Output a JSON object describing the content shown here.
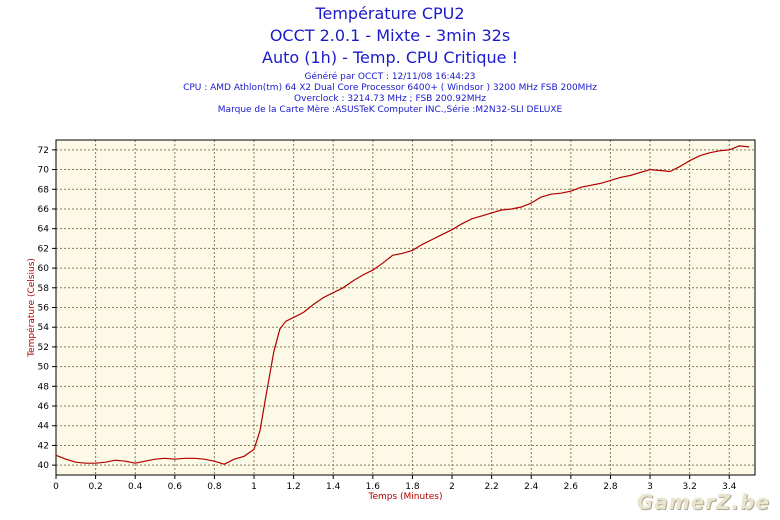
{
  "header": {
    "title_lines": [
      "Température CPU2",
      "OCCT 2.0.1 - Mixte - 3min 32s",
      "Auto (1h) - Temp. CPU Critique !"
    ],
    "info_lines": [
      "Généré par OCCT : 12/11/08 16:44:23",
      "CPU : AMD Athlon(tm) 64 X2 Dual Core Processor 6400+ ( Windsor ) 3200 MHz FSB 200MHz",
      "Overclock : 3214.73 MHz ; FSB 200.92MHz",
      "Marque de la Carte Mère :ASUSTeK Computer INC.,Série :M2N32-SLI DELUXE"
    ]
  },
  "watermark": "GamerZ.be",
  "colors": {
    "title": "#1a1acc",
    "line": "#b00000",
    "plot_bg": "#fcf9e6",
    "grid": "#8a7a5a",
    "axis_label": "#b00000"
  },
  "chart_data": {
    "type": "line",
    "title": "Température CPU2",
    "xlabel": "Temps (Minutes)",
    "ylabel": "Température (Celsius)",
    "xlim": [
      0,
      3.53
    ],
    "ylim": [
      39,
      73
    ],
    "grid": true,
    "x_ticks": [
      "0",
      "0.2",
      "0.4",
      "0.6",
      "0.8",
      "1",
      "1.2",
      "1.4",
      "1.6",
      "1.8",
      "2",
      "2.2",
      "2.4",
      "2.6",
      "2.8",
      "3",
      "3.2",
      "3.4"
    ],
    "y_ticks": [
      "40",
      "42",
      "44",
      "46",
      "48",
      "50",
      "52",
      "54",
      "56",
      "58",
      "60",
      "62",
      "64",
      "66",
      "68",
      "70",
      "72"
    ],
    "series": [
      {
        "x": [
          0,
          0.05,
          0.1,
          0.15,
          0.2,
          0.25,
          0.3,
          0.35,
          0.4,
          0.45,
          0.5,
          0.55,
          0.6,
          0.65,
          0.7,
          0.75,
          0.8,
          0.85,
          0.9,
          0.95,
          1.0,
          1.03,
          1.06,
          1.1,
          1.13,
          1.16,
          1.2,
          1.25,
          1.3,
          1.35,
          1.4,
          1.45,
          1.5,
          1.55,
          1.6,
          1.65,
          1.7,
          1.75,
          1.8,
          1.85,
          1.9,
          1.95,
          2.0,
          2.05,
          2.1,
          2.15,
          2.2,
          2.25,
          2.3,
          2.35,
          2.4,
          2.45,
          2.5,
          2.55,
          2.6,
          2.65,
          2.7,
          2.75,
          2.8,
          2.85,
          2.9,
          2.95,
          3.0,
          3.05,
          3.1,
          3.15,
          3.2,
          3.25,
          3.3,
          3.35,
          3.4,
          3.45,
          3.5
        ],
        "values": [
          41.0,
          40.6,
          40.3,
          40.2,
          40.2,
          40.3,
          40.5,
          40.4,
          40.2,
          40.4,
          40.6,
          40.7,
          40.6,
          40.7,
          40.7,
          40.6,
          40.4,
          40.1,
          40.6,
          40.9,
          41.6,
          43.5,
          47.0,
          51.5,
          53.8,
          54.6,
          55.0,
          55.5,
          56.3,
          57.0,
          57.5,
          58.0,
          58.7,
          59.3,
          59.8,
          60.5,
          61.3,
          61.5,
          61.8,
          62.4,
          62.9,
          63.4,
          63.9,
          64.5,
          65.0,
          65.3,
          65.6,
          65.9,
          66.0,
          66.2,
          66.6,
          67.2,
          67.5,
          67.6,
          67.8,
          68.2,
          68.4,
          68.6,
          68.9,
          69.2,
          69.4,
          69.7,
          70.0,
          69.9,
          69.8,
          70.3,
          70.9,
          71.4,
          71.7,
          71.9,
          72.0,
          72.4,
          72.3
        ]
      }
    ]
  }
}
